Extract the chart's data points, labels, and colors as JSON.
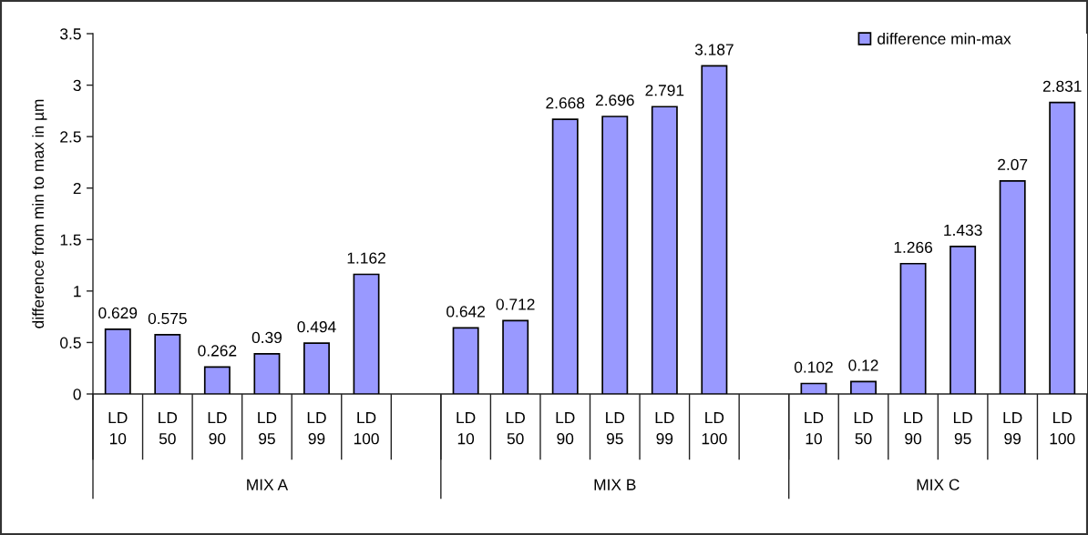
{
  "chart_data": {
    "type": "bar",
    "ylabel": "difference from min to max in µm",
    "categories": [
      "LD 10",
      "LD 50",
      "LD 90",
      "LD 95",
      "LD 99",
      "LD 100",
      null,
      "LD 10",
      "LD 50",
      "LD 90",
      "LD 95",
      "LD 99",
      "LD 100",
      null,
      "LD 10",
      "LD 50",
      "LD 90",
      "LD 95",
      "LD 99",
      "LD 100"
    ],
    "series": [
      {
        "name": "difference min-max",
        "color": "#9999ff",
        "values": [
          0.629,
          0.575,
          0.262,
          0.39,
          0.494,
          1.162,
          null,
          0.642,
          0.712,
          2.668,
          2.696,
          2.791,
          3.187,
          null,
          0.102,
          0.12,
          1.266,
          1.433,
          2.07,
          2.831
        ]
      }
    ],
    "ylim": [
      0,
      3.5
    ],
    "yticks": [
      0,
      0.5,
      1,
      1.5,
      2,
      2.5,
      3,
      3.5
    ],
    "data_labels": true,
    "legend": "top right",
    "annotations": [
      "MIX A",
      "MIX B",
      "MIX C"
    ]
  }
}
